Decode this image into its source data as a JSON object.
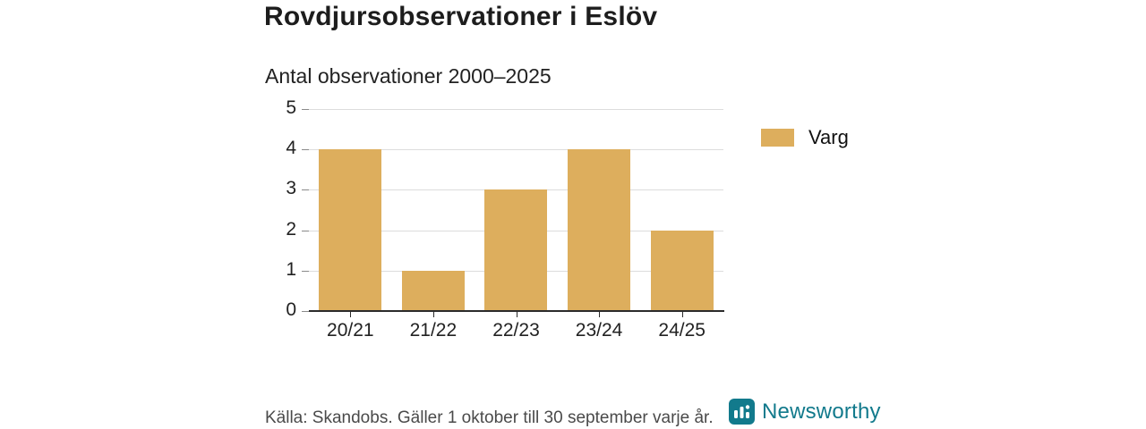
{
  "chart_data": {
    "type": "bar",
    "title": "Rovdjursobservationer i Eslöv",
    "subtitle": "Antal observationer 2000–2025",
    "categories": [
      "20/21",
      "21/22",
      "22/23",
      "23/24",
      "24/25"
    ],
    "series": [
      {
        "name": "Varg",
        "color": "#ddae5d",
        "values": [
          4,
          1,
          3,
          4,
          2
        ]
      }
    ],
    "ylim": [
      0,
      5
    ],
    "yticks": [
      0,
      1,
      2,
      3,
      4,
      5
    ],
    "grid": true,
    "legend_position": "right"
  },
  "footer": {
    "source_text": "Källa: Skandobs. Gäller 1 oktober till 30 september varje år.",
    "brand_name": "Newsworthy",
    "brand_color": "#127a8c"
  }
}
